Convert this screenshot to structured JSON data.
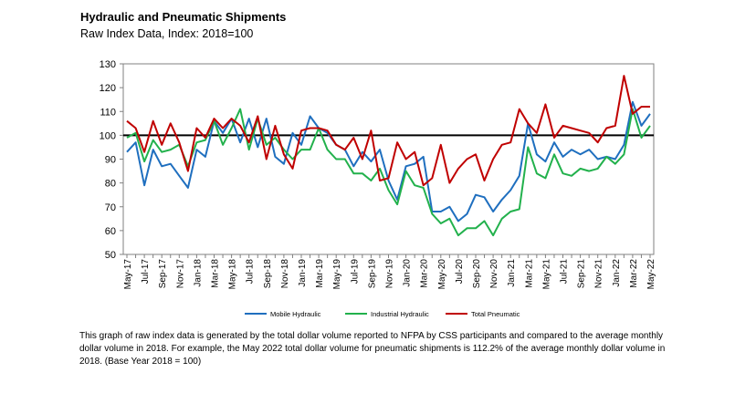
{
  "title": "Hydraulic and Pneumatic Shipments",
  "subtitle": "Raw Index Data, Index: 2018=100",
  "footnote": "This graph of raw index data is generated by the total dollar volume reported to NFPA by CSS participants and compared to the average monthly dollar volume in 2018.  For example, the May 2022 total dollar volume for pneumatic shipments is 112.2% of the average monthly dollar volume in 2018.  (Base Year 2018 = 100)",
  "chart_data": {
    "type": "line",
    "ylim": [
      50,
      130
    ],
    "yticks": [
      50,
      60,
      70,
      80,
      90,
      100,
      110,
      120,
      130
    ],
    "reference_line": 100,
    "reference_color": "#000000",
    "xtick_labels": [
      "May-17",
      "Jul-17",
      "Sep-17",
      "Nov-17",
      "Jan-18",
      "Mar-18",
      "May-18",
      "Jul-18",
      "Sep-18",
      "Nov-18",
      "Jan-19",
      "Mar-19",
      "May-19",
      "Jul-19",
      "Sep-19",
      "Nov-19",
      "Jan-20",
      "Mar-20",
      "May-20",
      "Jul-20",
      "Sep-20",
      "Nov-20",
      "Jan-21",
      "Mar-21",
      "May-21",
      "Jul-21",
      "Sep-21",
      "Nov-21",
      "Jan-22",
      "Mar-22",
      "May-22"
    ],
    "series": [
      {
        "name": "Mobile Hydraulic",
        "color": "#1f6fbf",
        "values": [
          93,
          97,
          79,
          94,
          87,
          88,
          83,
          78,
          94,
          91,
          106,
          101,
          107,
          97,
          107,
          95,
          107,
          91,
          88,
          101,
          96,
          108,
          103,
          101,
          96,
          94,
          87,
          93,
          89,
          94,
          81,
          73,
          87,
          88,
          91,
          68,
          68,
          70,
          64,
          67,
          75,
          74,
          68,
          73,
          77,
          83,
          105,
          92,
          89,
          97,
          91,
          94,
          92,
          94,
          90,
          91,
          90,
          96,
          114,
          104,
          109
        ]
      },
      {
        "name": "Industrial Hydraulic",
        "color": "#22b14c",
        "values": [
          99,
          101,
          89,
          98,
          93,
          94,
          96,
          87,
          97,
          98,
          106,
          96,
          103,
          111,
          94,
          107,
          96,
          99,
          94,
          90,
          94,
          94,
          103,
          94,
          90,
          90,
          84,
          84,
          81,
          86,
          77,
          71,
          85,
          79,
          78,
          67,
          63,
          65,
          58,
          61,
          61,
          64,
          58,
          65,
          68,
          69,
          95,
          84,
          82,
          92,
          84,
          83,
          86,
          85,
          86,
          91,
          88,
          92,
          111,
          99,
          104
        ]
      },
      {
        "name": "Total Pneumatic",
        "color": "#c00000",
        "values": [
          106,
          103,
          93,
          106,
          96,
          105,
          97,
          85,
          103,
          99,
          107,
          103,
          107,
          104,
          97,
          108,
          90,
          104,
          92,
          86,
          102,
          103,
          103,
          102,
          96,
          94,
          99,
          90,
          102,
          81,
          82,
          97,
          90,
          93,
          79,
          82,
          96,
          80,
          86,
          90,
          92,
          81,
          90,
          96,
          97,
          111,
          105,
          101,
          113,
          99,
          104,
          103,
          102,
          101,
          97,
          103,
          104,
          125,
          109,
          112,
          112
        ]
      }
    ]
  }
}
